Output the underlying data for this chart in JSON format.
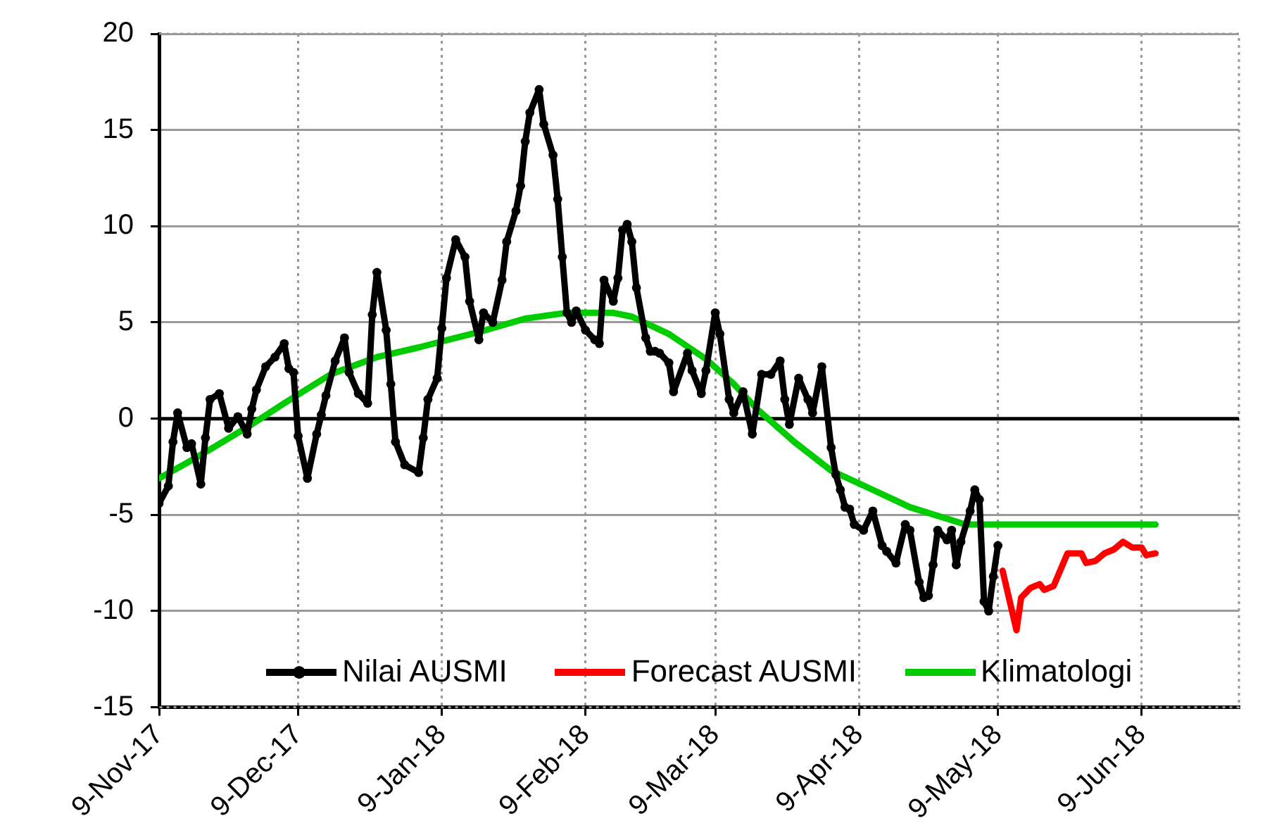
{
  "chart_data": {
    "type": "line",
    "xlim": [
      "2017-11-09",
      "2018-06-30"
    ],
    "xticks": [
      {
        "value": "2017-11-09",
        "label": "9-Nov-17"
      },
      {
        "value": "2017-12-09",
        "label": "9-Dec-17"
      },
      {
        "value": "2018-01-09",
        "label": "9-Jan-18"
      },
      {
        "value": "2018-02-09",
        "label": "9-Feb-18"
      },
      {
        "value": "2018-03-09",
        "label": "9-Mar-18"
      },
      {
        "value": "2018-04-09",
        "label": "9-Apr-18"
      },
      {
        "value": "2018-05-09",
        "label": "9-May-18"
      },
      {
        "value": "2018-06-09",
        "label": "9-Jun-18"
      }
    ],
    "ylim": [
      -15,
      20
    ],
    "yticks": [
      -15,
      -10,
      -5,
      0,
      5,
      10,
      15,
      20
    ],
    "grid": true,
    "legend": "bottom",
    "series": [
      {
        "name": "Nilai AUSMI",
        "color": "#000000",
        "marker": "circle",
        "x": [
          "2017-11-09",
          "2017-11-11",
          "2017-11-12",
          "2017-11-13",
          "2017-11-15",
          "2017-11-16",
          "2017-11-18",
          "2017-11-19",
          "2017-11-20",
          "2017-11-22",
          "2017-11-24",
          "2017-11-26",
          "2017-11-28",
          "2017-11-29",
          "2017-11-30",
          "2017-12-02",
          "2017-12-04",
          "2017-12-06",
          "2017-12-07",
          "2017-12-08",
          "2017-12-09",
          "2017-12-11",
          "2017-12-13",
          "2017-12-14",
          "2017-12-15",
          "2017-12-17",
          "2017-12-19",
          "2017-12-20",
          "2017-12-22",
          "2017-12-24",
          "2017-12-25",
          "2017-12-26",
          "2017-12-28",
          "2017-12-29",
          "2017-12-30",
          "2018-01-01",
          "2018-01-04",
          "2018-01-05",
          "2018-01-06",
          "2018-01-08",
          "2018-01-09",
          "2018-01-10",
          "2018-01-12",
          "2018-01-14",
          "2018-01-15",
          "2018-01-17",
          "2018-01-18",
          "2018-01-20",
          "2018-01-22",
          "2018-01-23",
          "2018-01-25",
          "2018-01-26",
          "2018-01-27",
          "2018-01-28",
          "2018-01-30",
          "2018-01-31",
          "2018-02-02",
          "2018-02-03",
          "2018-02-04",
          "2018-02-05",
          "2018-02-06",
          "2018-02-07",
          "2018-02-09",
          "2018-02-11",
          "2018-02-12",
          "2018-02-13",
          "2018-02-15",
          "2018-02-16",
          "2018-02-17",
          "2018-02-18",
          "2018-02-19",
          "2018-02-20",
          "2018-02-22",
          "2018-02-23",
          "2018-02-24",
          "2018-02-25",
          "2018-02-27",
          "2018-02-28",
          "2018-03-03",
          "2018-03-04",
          "2018-03-06",
          "2018-03-07",
          "2018-03-09",
          "2018-03-10",
          "2018-03-12",
          "2018-03-13",
          "2018-03-15",
          "2018-03-17",
          "2018-03-19",
          "2018-03-21",
          "2018-03-23",
          "2018-03-24",
          "2018-03-25",
          "2018-03-27",
          "2018-03-29",
          "2018-03-30",
          "2018-04-01",
          "2018-04-03",
          "2018-04-04",
          "2018-04-05",
          "2018-04-06",
          "2018-04-07",
          "2018-04-08",
          "2018-04-10",
          "2018-04-12",
          "2018-04-14",
          "2018-04-15",
          "2018-04-17",
          "2018-04-19",
          "2018-04-20",
          "2018-04-22",
          "2018-04-23",
          "2018-04-24",
          "2018-04-25",
          "2018-04-26",
          "2018-04-28",
          "2018-04-29",
          "2018-04-30",
          "2018-05-01",
          "2018-05-03",
          "2018-05-04",
          "2018-05-05",
          "2018-05-06",
          "2018-05-07",
          "2018-05-08",
          "2018-05-09"
        ],
        "values": [
          -4.4,
          -3.5,
          -1.2,
          0.3,
          -1.5,
          -1.3,
          -3.4,
          -1.0,
          1.0,
          1.3,
          -0.5,
          0.1,
          -0.8,
          0.5,
          1.5,
          2.7,
          3.2,
          3.9,
          2.6,
          2.4,
          -0.9,
          -3.1,
          -0.8,
          0.2,
          1.2,
          3.0,
          4.2,
          2.4,
          1.3,
          0.8,
          5.4,
          7.6,
          4.6,
          1.8,
          -1.2,
          -2.4,
          -2.8,
          -1.0,
          1.0,
          2.1,
          4.7,
          7.3,
          9.3,
          8.4,
          6.1,
          4.1,
          5.5,
          5.0,
          7.2,
          9.2,
          10.8,
          12.1,
          14.4,
          15.9,
          17.1,
          15.3,
          13.7,
          11.4,
          8.4,
          5.5,
          5.0,
          5.6,
          4.6,
          4.1,
          3.9,
          7.2,
          6.1,
          7.3,
          9.8,
          10.1,
          9.2,
          6.8,
          4.2,
          3.5,
          3.5,
          3.4,
          2.9,
          1.4,
          3.4,
          2.5,
          1.3,
          2.5,
          5.5,
          4.4,
          1.0,
          0.3,
          1.4,
          -0.8,
          2.3,
          2.3,
          3.0,
          1.0,
          -0.3,
          2.1,
          1.0,
          0.3,
          2.7,
          -1.5,
          -2.9,
          -3.7,
          -4.6,
          -4.7,
          -5.5,
          -5.8,
          -4.8,
          -6.6,
          -6.9,
          -7.5,
          -5.5,
          -5.8,
          -8.5,
          -9.3,
          -9.2,
          -7.6,
          -5.8,
          -6.3,
          -5.8,
          -7.6,
          -6.4,
          -4.8,
          -3.7,
          -4.2,
          -9.5,
          -10.0,
          -8.2,
          -6.6
        ]
      },
      {
        "name": "Forecast AUSMI",
        "color": "#ff0000",
        "x": [
          "2018-05-10",
          "2018-05-13",
          "2018-05-14",
          "2018-05-16",
          "2018-05-18",
          "2018-05-19",
          "2018-05-21",
          "2018-05-24",
          "2018-05-27",
          "2018-05-28",
          "2018-05-30",
          "2018-06-01",
          "2018-06-03",
          "2018-06-05",
          "2018-06-07",
          "2018-06-09",
          "2018-06-10",
          "2018-06-12"
        ],
        "values": [
          -7.9,
          -11.0,
          -9.3,
          -8.8,
          -8.6,
          -8.9,
          -8.7,
          -7.0,
          -7.0,
          -7.5,
          -7.4,
          -7.0,
          -6.8,
          -6.4,
          -6.7,
          -6.7,
          -7.1,
          -7.0
        ]
      },
      {
        "name": "Klimatologi",
        "color": "#00cc00",
        "x": [
          "2017-11-09",
          "2017-11-15",
          "2017-11-20",
          "2017-11-29",
          "2017-12-06",
          "2017-12-16",
          "2017-12-26",
          "2018-01-04",
          "2018-01-12",
          "2018-01-17",
          "2018-01-27",
          "2018-02-05",
          "2018-02-15",
          "2018-02-19",
          "2018-02-27",
          "2018-03-07",
          "2018-03-13",
          "2018-03-18",
          "2018-03-26",
          "2018-04-03",
          "2018-04-12",
          "2018-04-20",
          "2018-04-28",
          "2018-05-02",
          "2018-06-12"
        ],
        "values": [
          -3.1,
          -2.3,
          -1.6,
          -0.3,
          0.8,
          2.3,
          3.2,
          3.7,
          4.2,
          4.5,
          5.2,
          5.5,
          5.5,
          5.3,
          4.4,
          3.1,
          1.8,
          0.5,
          -1.2,
          -2.7,
          -3.7,
          -4.6,
          -5.2,
          -5.5,
          -5.5
        ]
      }
    ]
  }
}
